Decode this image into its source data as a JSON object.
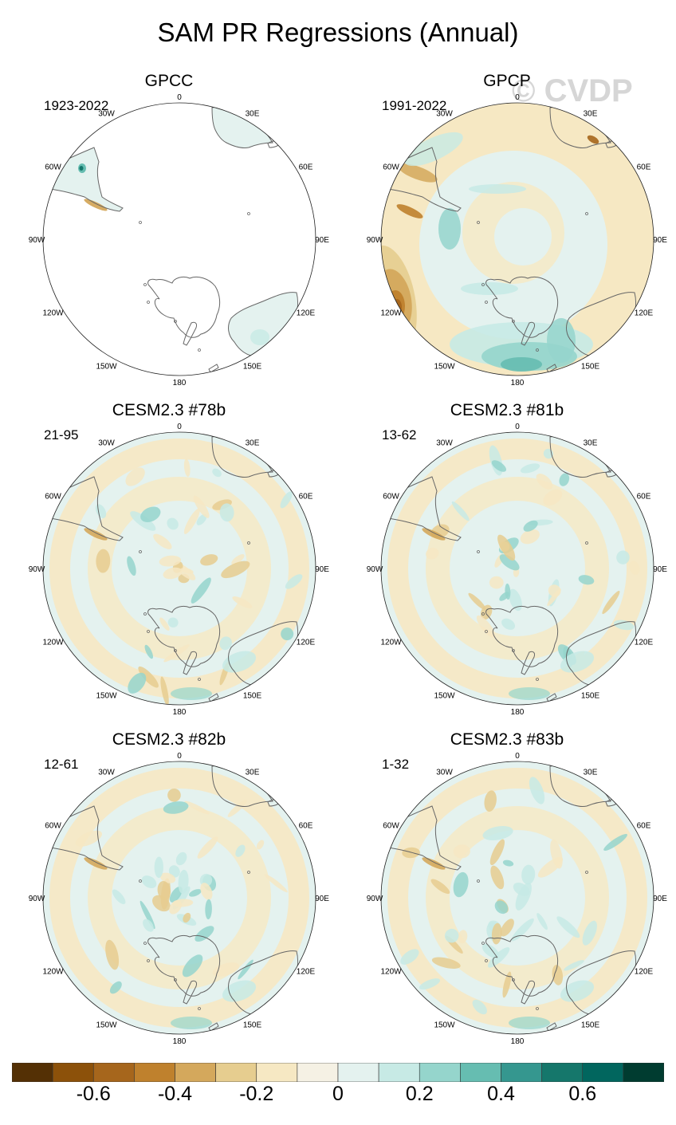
{
  "title": "SAM PR Regressions (Annual)",
  "watermark": "© CVDP",
  "longitude_labels": [
    "0",
    "30E",
    "60E",
    "90E",
    "120E",
    "150E",
    "180",
    "150W",
    "120W",
    "90W",
    "60W",
    "30W"
  ],
  "panels": [
    {
      "title": "GPCC",
      "period": "1923-2022"
    },
    {
      "title": "GPCP",
      "period": "1991-2022"
    },
    {
      "title": "CESM2.3 #78b",
      "period": "21-95"
    },
    {
      "title": "CESM2.3 #81b",
      "period": "13-62"
    },
    {
      "title": "CESM2.3 #82b",
      "period": "12-61"
    },
    {
      "title": "CESM2.3 #83b",
      "period": "1-32"
    }
  ],
  "colorbar": {
    "colors": [
      "#543005",
      "#8c510a",
      "#a6661c",
      "#bf812d",
      "#d4a85c",
      "#e6cd8f",
      "#f6e8c3",
      "#f5f1e4",
      "#e4f2ef",
      "#c7eae5",
      "#95d5cc",
      "#66bdb1",
      "#35978f",
      "#15776b",
      "#01665e",
      "#003c30"
    ],
    "labels": [
      "-0.6",
      "-0.4",
      "-0.2",
      "0",
      "0.2",
      "0.4",
      "0.6"
    ]
  }
}
